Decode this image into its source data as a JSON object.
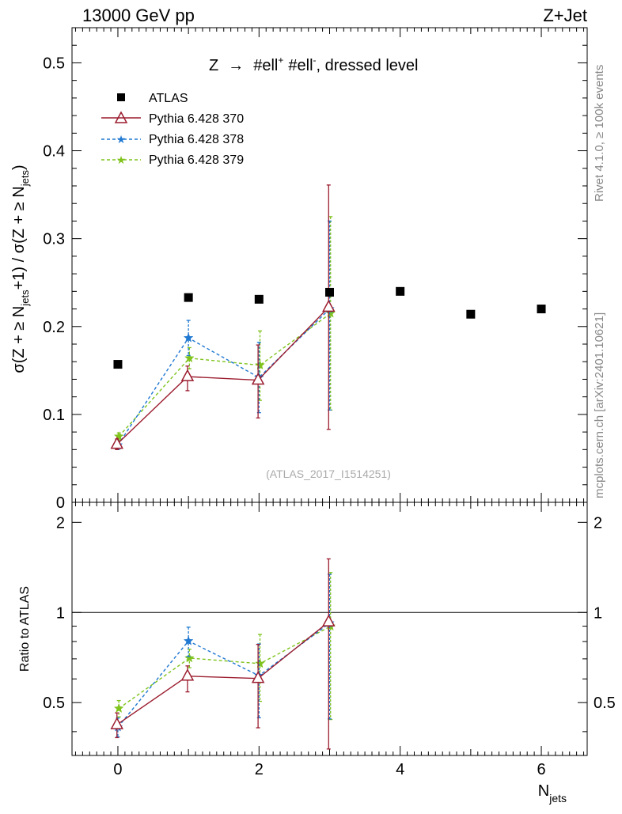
{
  "header": {
    "left": "13000 GeV pp",
    "right": "Z+Jet"
  },
  "side_labels": {
    "rivet": "Rivet 4.1.0, ≥ 100k events",
    "mcplots": "mcplots.cern.ch [arXiv:2401.10621]"
  },
  "chart_data": [
    {
      "type": "scatter",
      "panel": "main",
      "title": "Z → #ell⁺ #ell⁻, dressed level",
      "title_parts": {
        "lead": "Z",
        "arrow": "→",
        "ell1": "#ell",
        "sup1": "+",
        "ell2": "#ell",
        "sup2": "-",
        "tail": ", dressed level"
      },
      "watermark": "(ATLAS_2017_I1514251)",
      "ylabel_parts": {
        "p1": "σ(Z + ≥ N",
        "sub1": "jets",
        "p2": "+1) / σ(Z + ≥ N",
        "sub2": "jets",
        "p3": ")"
      },
      "xlim": [
        -0.65,
        6.65
      ],
      "ylim": [
        0,
        0.54
      ],
      "y_ticks": [
        0,
        0.1,
        0.2,
        0.3,
        0.4,
        0.5
      ],
      "y_tick_labels": [
        "0",
        "0.1",
        "0.2",
        "0.3",
        "0.4",
        "0.5"
      ],
      "legend": [
        "ATLAS",
        "Pythia 6.428 370",
        "Pythia 6.428 378",
        "Pythia 6.428 379"
      ],
      "series": [
        {
          "name": "ATLAS",
          "color": "#000000",
          "marker": "square",
          "line": "none",
          "x": [
            0,
            1,
            2,
            3,
            4,
            5,
            6
          ],
          "y": [
            0.157,
            0.233,
            0.231,
            0.239,
            0.24,
            0.214,
            0.22
          ]
        },
        {
          "name": "Pythia 6.428 370",
          "color": "#9b1c2e",
          "marker": "triangle",
          "line": "solid",
          "x": [
            0,
            1,
            2,
            3
          ],
          "y": [
            0.066,
            0.143,
            0.139,
            0.222
          ],
          "err_lo": [
            0.006,
            0.016,
            0.043,
            0.139
          ],
          "err_hi": [
            0.006,
            0.012,
            0.04,
            0.139
          ]
        },
        {
          "name": "Pythia 6.428 378",
          "color": "#1f78d1",
          "marker": "star",
          "line": "dashed",
          "x": [
            0,
            1,
            2,
            3
          ],
          "y": [
            0.065,
            0.187,
            0.142,
            0.22
          ],
          "err_lo": [
            0.005,
            0.02,
            0.04,
            0.115
          ],
          "err_hi": [
            0.005,
            0.02,
            0.04,
            0.1
          ]
        },
        {
          "name": "Pythia 6.428 379",
          "color": "#7fc31c",
          "marker": "star",
          "line": "dashed",
          "x": [
            0,
            1,
            2,
            3
          ],
          "y": [
            0.075,
            0.164,
            0.156,
            0.215
          ],
          "err_lo": [
            0.004,
            0.012,
            0.04,
            0.11
          ],
          "err_hi": [
            0.004,
            0.012,
            0.039,
            0.11
          ]
        }
      ]
    },
    {
      "type": "scatter",
      "panel": "ratio",
      "ylabel": "Ratio to ATLAS",
      "xlabel": "N",
      "xlabel_sub": "jets",
      "xlim": [
        -0.65,
        6.65
      ],
      "ylim": [
        0.333,
        2.333
      ],
      "reference_line": 1,
      "x_ticks": [
        0,
        2,
        4,
        6
      ],
      "x_tick_labels": [
        "0",
        "2",
        "4",
        "6"
      ],
      "y_ticks": [
        0.5,
        1,
        2
      ],
      "y_tick_labels": [
        "0.5",
        "1",
        "2"
      ],
      "series": [
        {
          "name": "Pythia 6.428 370",
          "color": "#9b1c2e",
          "marker": "triangle",
          "line": "solid",
          "x": [
            0,
            1,
            2,
            3
          ],
          "y": [
            0.422,
            0.613,
            0.602,
            0.93
          ],
          "err_lo": [
            0.04,
            0.07,
            0.19,
            0.58
          ],
          "err_hi": [
            0.04,
            0.05,
            0.18,
            0.58
          ]
        },
        {
          "name": "Pythia 6.428 378",
          "color": "#1f78d1",
          "marker": "star",
          "line": "dashed",
          "x": [
            0,
            1,
            2,
            3
          ],
          "y": [
            0.414,
            0.803,
            0.615,
            0.921
          ],
          "err_lo": [
            0.03,
            0.09,
            0.17,
            0.48
          ],
          "err_hi": [
            0.03,
            0.09,
            0.17,
            0.42
          ]
        },
        {
          "name": "Pythia 6.428 379",
          "color": "#7fc31c",
          "marker": "star",
          "line": "dashed",
          "x": [
            0,
            1,
            2,
            3
          ],
          "y": [
            0.478,
            0.704,
            0.675,
            0.899
          ],
          "err_lo": [
            0.03,
            0.05,
            0.17,
            0.46
          ],
          "err_hi": [
            0.03,
            0.05,
            0.17,
            0.46
          ]
        }
      ]
    }
  ]
}
